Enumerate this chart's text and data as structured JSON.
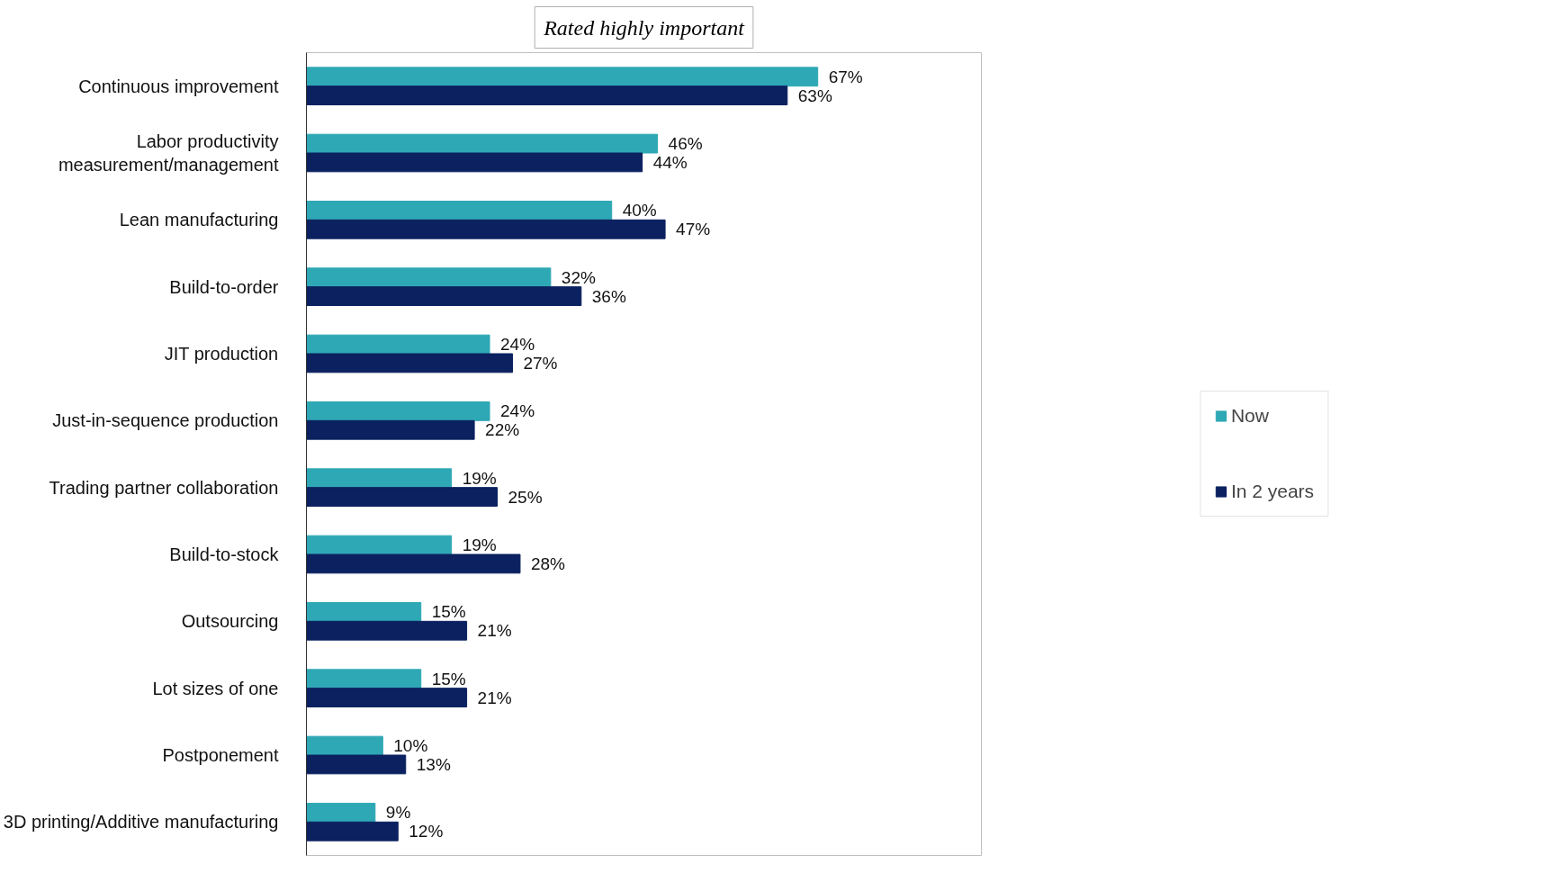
{
  "chart_data": {
    "type": "bar",
    "orientation": "horizontal",
    "title": "Rated highly important",
    "categories": [
      "Continuous improvement",
      "Labor productivity\nmeasurement/management",
      "Lean manufacturing",
      "Build-to-order",
      "JIT production",
      "Just-in-sequence production",
      "Trading partner collaboration",
      "Build-to-stock",
      "Outsourcing",
      "Lot sizes of one",
      "Postponement",
      "3D printing/Additive manufacturing"
    ],
    "series": [
      {
        "name": "Now",
        "color": "#2fa8b5",
        "values": [
          67,
          46,
          40,
          32,
          24,
          24,
          19,
          19,
          15,
          15,
          10,
          9
        ],
        "value_labels": [
          "67%",
          "46%",
          "40%",
          "32%",
          "24%",
          "24%",
          "19%",
          "19%",
          "15%",
          "15%",
          "10%",
          "9%"
        ]
      },
      {
        "name": "In 2 years",
        "color": "#0b2160",
        "values": [
          63,
          44,
          47,
          36,
          27,
          22,
          25,
          28,
          21,
          21,
          13,
          12
        ],
        "value_labels": [
          "63%",
          "44%",
          "47%",
          "36%",
          "27%",
          "22%",
          "25%",
          "28%",
          "21%",
          "21%",
          "13%",
          "12%"
        ]
      }
    ],
    "legend": "right",
    "grid": false
  }
}
